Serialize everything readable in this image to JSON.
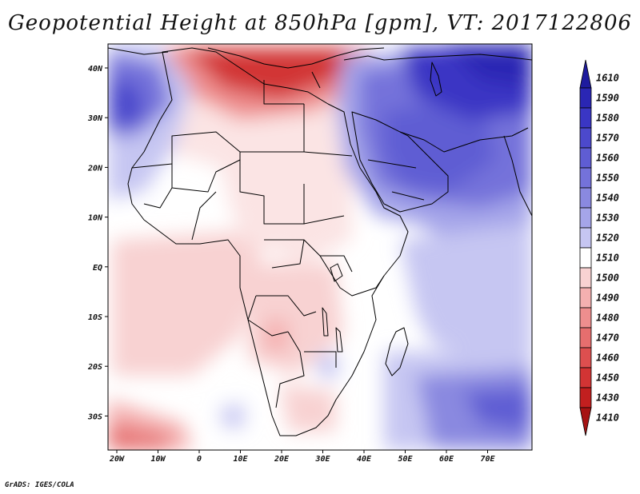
{
  "title": "Geopotential Height at 850hPa [gpm], VT: 2017122806",
  "credit": "GrADS: IGES/COLA",
  "map": {
    "region": "Africa and Middle East",
    "lon_range": [
      -22,
      80
    ],
    "lat_range": [
      -37,
      45
    ],
    "x_ticks": [
      "20W",
      "10W",
      "0",
      "10E",
      "20E",
      "30E",
      "40E",
      "50E",
      "60E",
      "70E"
    ],
    "y_ticks": [
      "40N",
      "30N",
      "20N",
      "10N",
      "EQ",
      "10S",
      "20S",
      "30S"
    ]
  },
  "colorbar": {
    "levels": [
      "1610",
      "1590",
      "1580",
      "1570",
      "1560",
      "1550",
      "1540",
      "1530",
      "1520",
      "1510",
      "1500",
      "1490",
      "1480",
      "1470",
      "1460",
      "1450",
      "1430",
      "1410"
    ],
    "colors": [
      "#1e1b9e",
      "#2a26b4",
      "#3a36c4",
      "#4c49cc",
      "#5f5dd3",
      "#7472da",
      "#8a89e0",
      "#a5a5e9",
      "#c6c6f2",
      "#ffffff",
      "#f8d2d2",
      "#f4b0b0",
      "#ee8e8e",
      "#e66e6e",
      "#dd4f4f",
      "#d23434",
      "#c21f1f",
      "#a61414"
    ]
  }
}
